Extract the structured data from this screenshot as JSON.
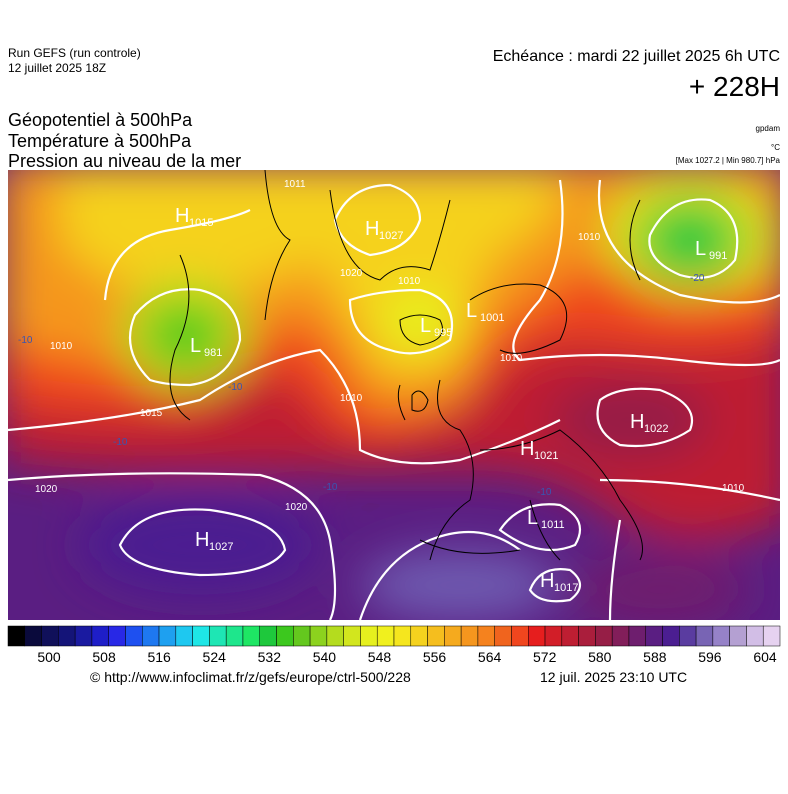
{
  "header": {
    "run": "Run GEFS (run controle)",
    "date": "12 juillet 2025 18Z",
    "echeance": "Echéance : mardi 22 juillet 2025 6h UTC",
    "lead": "+ 228H",
    "titles": [
      "Géopotentiel à 500hPa",
      "Température à 500hPa",
      "Pression au niveau de la mer"
    ],
    "units": [
      "gpdam",
      "°C"
    ],
    "minmax": "[Max 1027.2 | Min 980.7] hPa"
  },
  "map": {
    "centers": [
      {
        "type": "H",
        "value": "1015"
      },
      {
        "type": "H",
        "value": "1027"
      },
      {
        "type": "L",
        "value": "991"
      },
      {
        "type": "L",
        "value": "995"
      },
      {
        "type": "L",
        "value": "1001"
      },
      {
        "type": "L",
        "value": "981"
      },
      {
        "type": "H",
        "value": "1022"
      },
      {
        "type": "H",
        "value": "1021"
      },
      {
        "type": "L",
        "value": "1011"
      },
      {
        "type": "H",
        "value": "1027"
      },
      {
        "type": "H",
        "value": "1017"
      }
    ],
    "isobar_labels": [
      "1011",
      "1020",
      "1010",
      "1010",
      "1010",
      "1010",
      "1015",
      "1020",
      "1020",
      "1010",
      "1010"
    ],
    "temperature_labels": [
      "-20",
      "-10",
      "-10",
      "-10",
      "-10",
      "-10"
    ]
  },
  "scale": {
    "ticks": [
      500,
      508,
      516,
      524,
      532,
      540,
      548,
      556,
      564,
      572,
      580,
      588,
      596,
      604
    ],
    "colors": [
      "#000000",
      "#0a0a3c",
      "#10105a",
      "#141478",
      "#1a1aa0",
      "#1e1ec8",
      "#2828e6",
      "#1e50f0",
      "#1e78f0",
      "#1ea0f0",
      "#1ec8f0",
      "#1ee6e6",
      "#1ee6b4",
      "#1ee68c",
      "#1ee664",
      "#1ec83c",
      "#3cc81e",
      "#64c81e",
      "#8cd21e",
      "#b4dc1e",
      "#d2e61e",
      "#e6f01e",
      "#f0f01e",
      "#f5e61e",
      "#f5d21e",
      "#f5be1e",
      "#f5aa1e",
      "#f5961e",
      "#f5821e",
      "#f0641e",
      "#f0461e",
      "#e61e1e",
      "#d21e28",
      "#be1e32",
      "#aa1e3c",
      "#961e46",
      "#821e5a",
      "#6e1e6e",
      "#5a1e82",
      "#4b1e91",
      "#5a3ca0",
      "#7864b4",
      "#9682c8",
      "#b4a0d2",
      "#d2bee6",
      "#e6d2f0"
    ]
  },
  "footer": {
    "url": "© http://www.infoclimat.fr/z/gefs/europe/ctrl-500/228",
    "time": "12 juil. 2025 23:10 UTC"
  }
}
